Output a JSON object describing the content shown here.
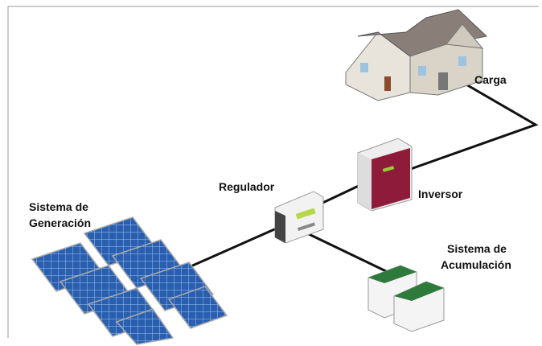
{
  "nodes": [
    {
      "id": "carga",
      "label": [
        "Carga"
      ]
    },
    {
      "id": "inversor",
      "label": [
        "Inversor"
      ]
    },
    {
      "id": "regulador",
      "label": [
        "Regulador"
      ]
    },
    {
      "id": "generacion",
      "label": [
        "Sistema de",
        "Generación"
      ]
    },
    {
      "id": "acumulacion",
      "label": [
        "Sistema de",
        "Acumulación"
      ]
    }
  ]
}
